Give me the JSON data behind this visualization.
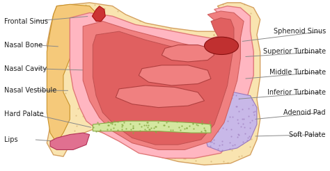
{
  "background_color": "#ffffff",
  "colors": {
    "skin_outer": "#F5C97A",
    "skin_inner": "#F9E4B0",
    "cavity_light": "#FFB6C1",
    "cavity_mid": "#F08080",
    "cavity_dark": "#E06060",
    "sphenoid": "#C03030",
    "frontal": "#CC3333",
    "soft_palate": "#C8B8E8",
    "hard_palate": "#D4E8A0",
    "lips": "#E07090",
    "line_color": "#888888",
    "text_color": "#222222"
  },
  "font_size": 7.0,
  "left_labels": [
    "Frontal Sinus",
    "Nasal Bone",
    "Nasal Cavity",
    "Nasal Vestibule",
    "Hard Palate",
    "Lips"
  ],
  "right_labels": [
    "Sphenoid Sinus",
    "Superior Turbinate",
    "Middle Turbinate",
    "Inferior Turbinate",
    "Adenoid Pad",
    "Soft Palate"
  ]
}
